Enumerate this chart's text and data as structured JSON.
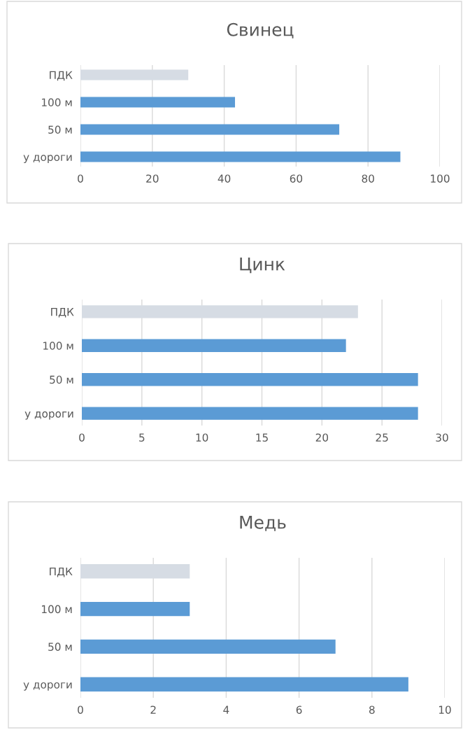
{
  "chart_data": [
    {
      "type": "bar",
      "orientation": "horizontal",
      "title": "Свинец",
      "categories": [
        "ПДК",
        "100 м",
        "50 м",
        "у дороги"
      ],
      "values": [
        30,
        43,
        72,
        89
      ],
      "colors": [
        "#d6dce4",
        "#5b9bd5",
        "#5b9bd5",
        "#5b9bd5"
      ],
      "xlim": [
        0,
        100
      ],
      "xticks": [
        0,
        20,
        40,
        60,
        80,
        100
      ],
      "grid": "x"
    },
    {
      "type": "bar",
      "orientation": "horizontal",
      "title": "Цинк",
      "categories": [
        "ПДК",
        "100 м",
        "50 м",
        "у дороги"
      ],
      "values": [
        23,
        22,
        28,
        28
      ],
      "colors": [
        "#d6dce4",
        "#5b9bd5",
        "#5b9bd5",
        "#5b9bd5"
      ],
      "xlim": [
        0,
        30
      ],
      "xticks": [
        0,
        5,
        10,
        15,
        20,
        25,
        30
      ],
      "grid": "x"
    },
    {
      "type": "bar",
      "orientation": "horizontal",
      "title": "Медь",
      "categories": [
        "ПДК",
        "100 м",
        "50 м",
        "у дороги"
      ],
      "values": [
        3,
        3,
        7,
        9
      ],
      "colors": [
        "#d6dce4",
        "#5b9bd5",
        "#5b9bd5",
        "#5b9bd5"
      ],
      "xlim": [
        0,
        10
      ],
      "xticks": [
        0,
        2,
        4,
        6,
        8,
        10
      ],
      "grid": "x"
    }
  ]
}
